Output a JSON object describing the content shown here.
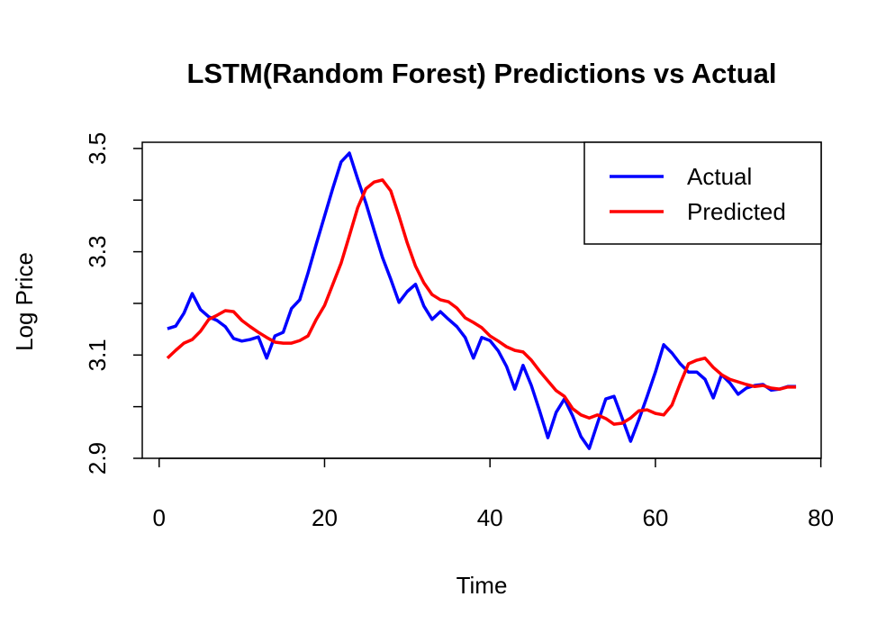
{
  "chart_data": {
    "type": "line",
    "title": "LSTM(Random Forest) Predictions vs Actual",
    "x_label": "Time",
    "y_label": "Log Price",
    "x": [
      1,
      2,
      3,
      4,
      5,
      6,
      7,
      8,
      9,
      10,
      11,
      12,
      13,
      14,
      15,
      16,
      17,
      18,
      19,
      20,
      21,
      22,
      23,
      24,
      25,
      26,
      27,
      28,
      29,
      30,
      31,
      32,
      33,
      34,
      35,
      36,
      37,
      38,
      39,
      40,
      41,
      42,
      43,
      44,
      45,
      46,
      47,
      48,
      49,
      50,
      51,
      52,
      53,
      54,
      55,
      56,
      57,
      58,
      59,
      60,
      61,
      62,
      63,
      64,
      65,
      66,
      67,
      68,
      69,
      70,
      71,
      72,
      73,
      74,
      75,
      76,
      77
    ],
    "series": [
      {
        "name": "Actual",
        "color": "#0000ff",
        "values": [
          3.151,
          3.156,
          3.181,
          3.219,
          3.188,
          3.174,
          3.167,
          3.155,
          3.132,
          3.127,
          3.13,
          3.135,
          3.094,
          3.137,
          3.144,
          3.19,
          3.207,
          3.259,
          3.315,
          3.369,
          3.423,
          3.474,
          3.491,
          3.441,
          3.394,
          3.341,
          3.289,
          3.247,
          3.202,
          3.223,
          3.237,
          3.195,
          3.169,
          3.184,
          3.169,
          3.155,
          3.134,
          3.094,
          3.134,
          3.128,
          3.108,
          3.078,
          3.034,
          3.08,
          3.041,
          2.992,
          2.94,
          2.989,
          3.015,
          2.982,
          2.942,
          2.919,
          2.968,
          3.015,
          3.02,
          2.977,
          2.933,
          2.975,
          3.02,
          3.067,
          3.12,
          3.104,
          3.083,
          3.067,
          3.067,
          3.053,
          3.017,
          3.062,
          3.046,
          3.024,
          3.036,
          3.041,
          3.043,
          3.032,
          3.034,
          3.039,
          3.039
        ]
      },
      {
        "name": "Predicted",
        "color": "#ff0000",
        "values": [
          3.094,
          3.109,
          3.123,
          3.13,
          3.146,
          3.169,
          3.177,
          3.186,
          3.184,
          3.167,
          3.155,
          3.144,
          3.134,
          3.125,
          3.123,
          3.123,
          3.128,
          3.137,
          3.169,
          3.196,
          3.237,
          3.278,
          3.331,
          3.385,
          3.422,
          3.435,
          3.439,
          3.418,
          3.369,
          3.317,
          3.272,
          3.24,
          3.217,
          3.207,
          3.203,
          3.191,
          3.172,
          3.163,
          3.153,
          3.137,
          3.127,
          3.116,
          3.109,
          3.106,
          3.09,
          3.069,
          3.05,
          3.031,
          3.02,
          2.996,
          2.984,
          2.978,
          2.984,
          2.977,
          2.966,
          2.968,
          2.978,
          2.992,
          2.994,
          2.987,
          2.984,
          3.003,
          3.045,
          3.083,
          3.09,
          3.094,
          3.076,
          3.062,
          3.053,
          3.048,
          3.043,
          3.039,
          3.041,
          3.036,
          3.034,
          3.038,
          3.038
        ]
      }
    ],
    "xlim": [
      -2.04,
      80.04
    ],
    "xticks": [
      0,
      20,
      40,
      60,
      80
    ],
    "ylim": [
      2.9,
      3.512
    ],
    "yticks": [
      2.9,
      3.1,
      3.3,
      3.5
    ],
    "yticks_minor": [
      3.0,
      3.2,
      3.4
    ],
    "legend": "topright",
    "grid": false
  }
}
